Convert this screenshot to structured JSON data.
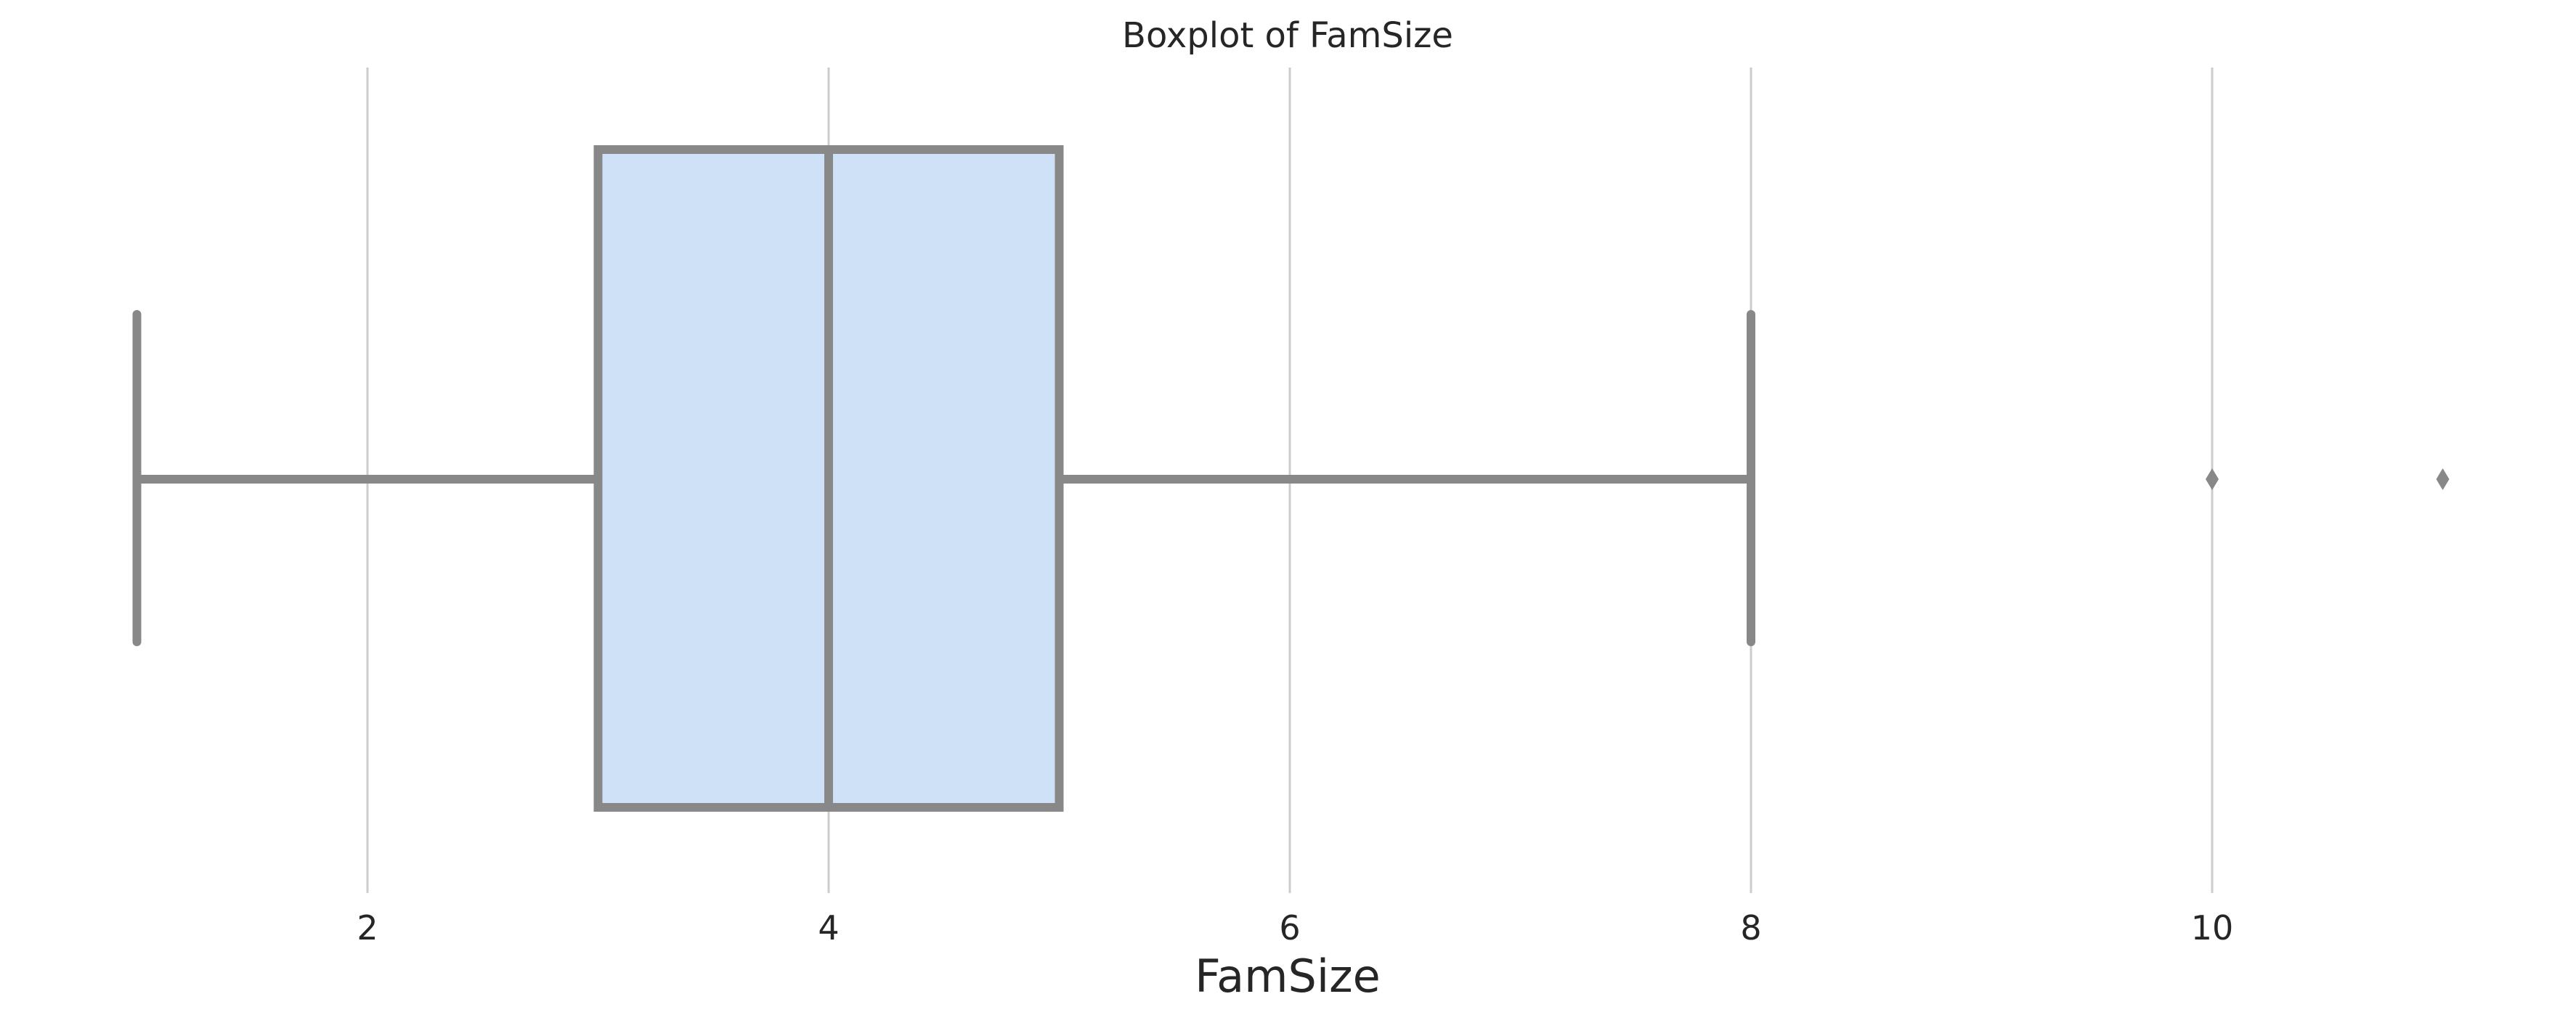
{
  "chart_data": {
    "type": "box",
    "title": "Boxplot of FamSize",
    "xlabel": "FamSize",
    "ylabel": "",
    "orientation": "horizontal",
    "xlim": [
      0.5,
      11.3
    ],
    "xticks": [
      2,
      4,
      6,
      8,
      10
    ],
    "grid": true,
    "grid_axis": "x",
    "box": {
      "whisker_low": 1,
      "q1": 3,
      "median": 4,
      "q3": 5,
      "whisker_high": 8
    },
    "outliers": [
      10,
      11
    ],
    "colors": {
      "box_fill": "#cfe1f7",
      "line": "#888888",
      "grid": "#cccccc",
      "text": "#262626"
    }
  }
}
